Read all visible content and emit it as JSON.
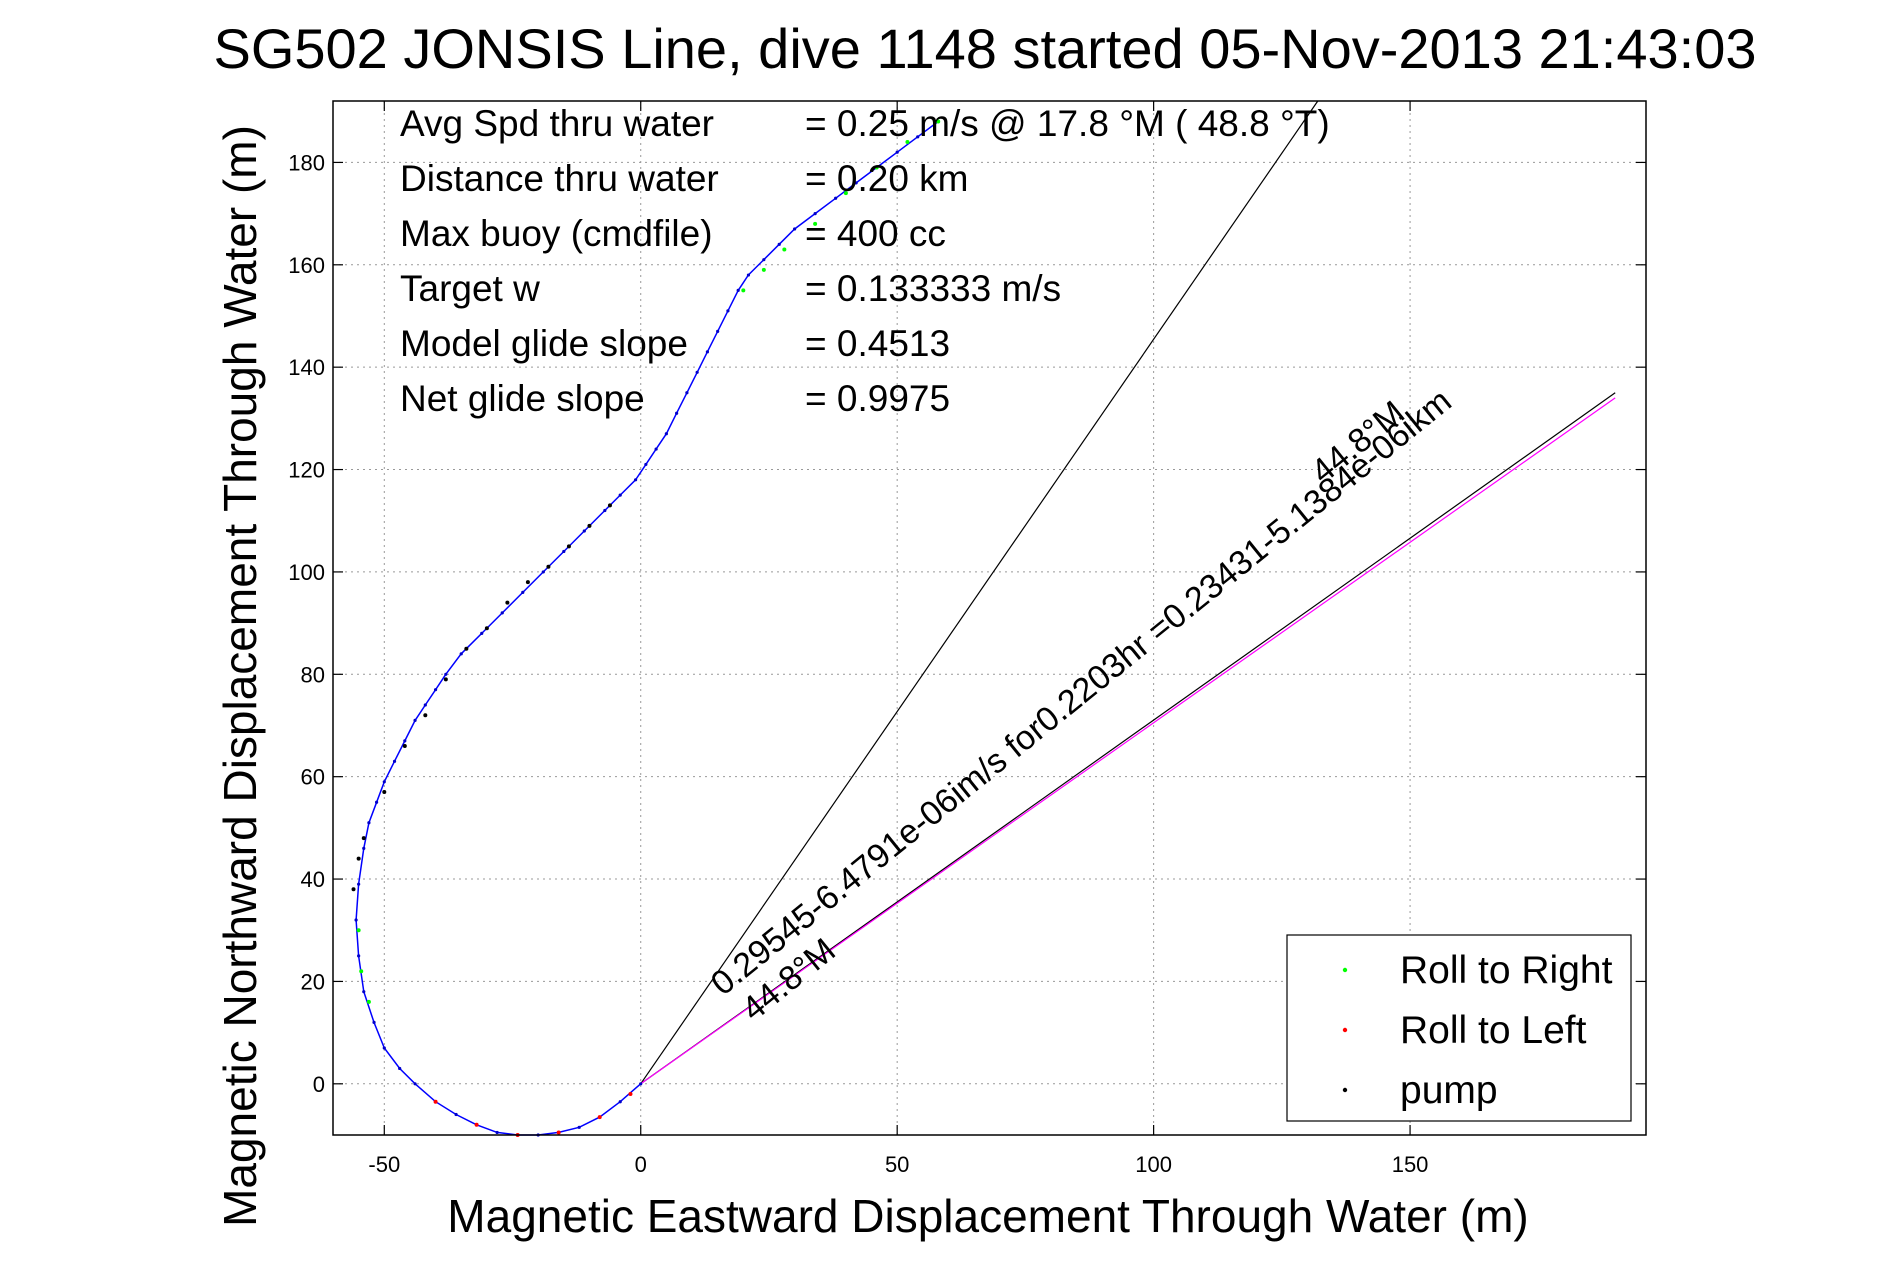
{
  "chart_data": {
    "type": "line",
    "title": "SG502 JONSIS Line, dive 1148 started 05-Nov-2013 21:43:03",
    "xlabel": "Magnetic Eastward Displacement Through Water (m)",
    "ylabel": "Magnetic Northward Displacement Through Water (m)",
    "xlim": [
      -60,
      196
    ],
    "ylim": [
      -10,
      192
    ],
    "xticks": [
      -50,
      0,
      50,
      100,
      150
    ],
    "yticks": [
      0,
      20,
      40,
      60,
      80,
      100,
      120,
      140,
      160,
      180
    ],
    "grid": true,
    "legend_position": "bottom-right",
    "info_rows": [
      {
        "label": "Avg Spd thru water",
        "value": "=  0.25 m/s @  17.8 °M ( 48.8 °T)"
      },
      {
        "label": "Distance thru water",
        "value": "=  0.20 km"
      },
      {
        "label": "Max buoy (cmdfile)",
        "value": "= 400 cc"
      },
      {
        "label": "Target w",
        "value": "= 0.133333 m/s"
      },
      {
        "label": "Model glide slope",
        "value": "= 0.4513"
      },
      {
        "label": "Net glide slope",
        "value": "= 0.9975"
      }
    ],
    "annotations": [
      {
        "text": "0.29545-6.4791e-06im/s for0.2203hr =0.23431-5.1384e-06ikm",
        "x": 16,
        "y": 17,
        "angle_deg": 39
      },
      {
        "text": "44.8°M",
        "x": 22,
        "y": 12,
        "angle_deg": 39
      },
      {
        "text": "44.8°M",
        "x": 133,
        "y": 117,
        "angle_deg": 39
      }
    ],
    "series": [
      {
        "name": "track",
        "color": "#0000ff",
        "x": [
          0,
          -4,
          -8,
          -12,
          -16,
          -20,
          -24,
          -28,
          -32,
          -36,
          -40,
          -44,
          -47,
          -50,
          -52,
          -54,
          -55,
          -55.5,
          -55,
          -54,
          -53,
          -51.5,
          -50,
          -48,
          -46,
          -44,
          -42,
          -40,
          -38,
          -35,
          -31,
          -27,
          -23,
          -19,
          -15,
          -11,
          -7,
          -4,
          -1,
          1,
          3,
          5,
          7,
          9,
          11,
          13,
          15,
          17,
          19,
          21,
          24,
          27,
          30,
          34,
          38,
          42,
          46,
          50,
          54,
          58
        ],
        "y": [
          0,
          -3.5,
          -6.5,
          -8.5,
          -9.5,
          -10,
          -10,
          -9.5,
          -8,
          -6,
          -3.5,
          0,
          3,
          7,
          12,
          18,
          25,
          32,
          39,
          46,
          51,
          55,
          59,
          63,
          67,
          71,
          74,
          77,
          80,
          84,
          88,
          92,
          96,
          100,
          104,
          108,
          112,
          115,
          118,
          121,
          124,
          127,
          131,
          135,
          139,
          143,
          147,
          151,
          155,
          158,
          161,
          164,
          167,
          170,
          173,
          176,
          179,
          182,
          185,
          188
        ]
      },
      {
        "name": "Roll to Right",
        "color": "#00ff00",
        "x": [
          -55,
          -54.5,
          -53,
          20,
          24,
          28,
          34,
          40,
          46,
          52,
          58
        ],
        "y": [
          30,
          22,
          16,
          155,
          159,
          163,
          168,
          174,
          179,
          184,
          188
        ]
      },
      {
        "name": "Roll to Left",
        "color": "#ff0000",
        "x": [
          -40,
          -32,
          -24,
          -16,
          -8,
          -2
        ],
        "y": [
          -3.5,
          -8,
          -10,
          -9.5,
          -6.5,
          -2
        ]
      },
      {
        "name": "pump",
        "color": "#000000",
        "x": [
          -56,
          -55,
          -54,
          -50,
          -46,
          -42,
          -38,
          -34,
          -30,
          -26,
          -22,
          -18,
          -14,
          -10,
          -6
        ],
        "y": [
          38,
          44,
          48,
          57,
          66,
          72,
          79,
          85,
          89,
          94,
          98,
          101,
          105,
          109,
          113
        ]
      },
      {
        "name": "net-track",
        "color": "#ff00ff",
        "x": [
          0,
          190
        ],
        "y": [
          0,
          134
        ]
      },
      {
        "name": "wedge-left",
        "color": "#000000",
        "x": [
          0,
          132
        ],
        "y": [
          0,
          192
        ]
      },
      {
        "name": "wedge-right",
        "color": "#000000",
        "x": [
          0,
          190
        ],
        "y": [
          0,
          135
        ]
      }
    ],
    "legend": [
      {
        "label": "Roll to Right",
        "color": "#00ff00"
      },
      {
        "label": "Roll to Left",
        "color": "#ff0000"
      },
      {
        "label": "pump",
        "color": "#000000"
      }
    ]
  }
}
